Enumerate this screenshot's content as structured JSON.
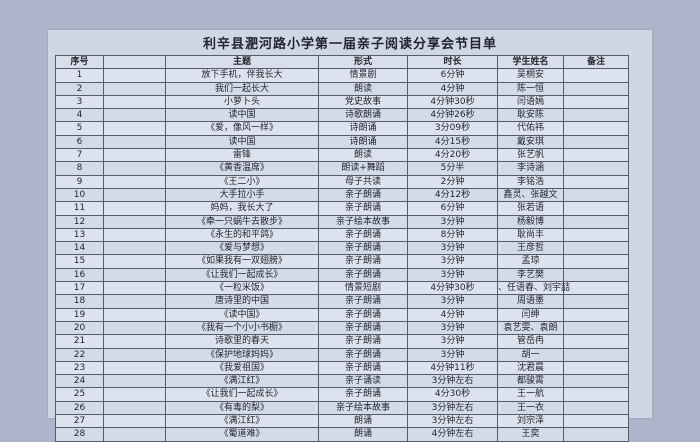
{
  "colors": {
    "page_background": "#aeb5ca",
    "panel_background": "#cfd7e5",
    "grid_line": "#565c69",
    "text": "#23262f"
  },
  "title": "利辛县淝河路小学第一届亲子阅读分享会节目单",
  "table": {
    "headers": [
      "序号",
      "",
      "主题",
      "形式",
      "时长",
      "学生姓名",
      "备注"
    ],
    "rows": [
      [
        "1",
        "",
        "放下手机，伴我长大",
        "情景剧",
        "6分钟",
        "吴桐安",
        ""
      ],
      [
        "2",
        "",
        "我们一起长大",
        "朗读",
        "4分钟",
        "陈一恒",
        ""
      ],
      [
        "3",
        "",
        "小萝卜头",
        "党史故事",
        "4分钟30秒",
        "闫语嫣",
        ""
      ],
      [
        "4",
        "",
        "读中国",
        "诗歌朗诵",
        "4分钟26秒",
        "耿安陈",
        ""
      ],
      [
        "5",
        "",
        "《爱，像风一样》",
        "诗朗诵",
        "3分09秒",
        "代佑祎",
        ""
      ],
      [
        "6",
        "",
        "读中国",
        "诗朗诵",
        "4分15秒",
        "戴安琪",
        ""
      ],
      [
        "7",
        "",
        "雷锋",
        "朗读",
        "4分20秒",
        "张艺帆",
        ""
      ],
      [
        "8",
        "",
        "《黄香温席》",
        "朗读+舞蹈",
        "5分半",
        "李诗涵",
        ""
      ],
      [
        "9",
        "",
        "《王二小》",
        "母子共读",
        "2分钟",
        "李铭浩",
        ""
      ],
      [
        "10",
        "",
        "大手拉小手",
        "亲子朗诵",
        "4分12秒",
        "鑫灵、张越文",
        ""
      ],
      [
        "11",
        "",
        "妈妈，我长大了",
        "亲子朗诵",
        "6分钟",
        "张若语",
        ""
      ],
      [
        "12",
        "",
        "《牵一只蜗牛去散步》",
        "亲子绘本故事",
        "3分钟",
        "杨毅博",
        ""
      ],
      [
        "13",
        "",
        "《永生的和平鸽》",
        "亲子朗诵",
        "8分钟",
        "耿尚丰",
        ""
      ],
      [
        "14",
        "",
        "《爱与梦想》",
        "亲子朗诵",
        "3分钟",
        "王彦哲",
        ""
      ],
      [
        "15",
        "",
        "《如果我有一双翅膀》",
        "亲子朗诵",
        "3分钟",
        "孟琼",
        ""
      ],
      [
        "16",
        "",
        "《让我们一起成长》",
        "亲子朗诵",
        "3分钟",
        "李艺樊",
        ""
      ],
      [
        "17",
        "",
        "《一粒米饭》",
        "情景短剧",
        "4分钟30秒",
        "、任语春、刘宇喆",
        ""
      ],
      [
        "18",
        "",
        "唐诗里的中国",
        "亲子朗诵",
        "3分钟",
        "周语墨",
        ""
      ],
      [
        "19",
        "",
        "《读中国》",
        "亲子朗诵",
        "4分钟",
        "闫绅",
        ""
      ],
      [
        "20",
        "",
        "《我有一个小小书橱》",
        "亲子朗诵",
        "3分钟",
        "袁艺雯、袁朗",
        ""
      ],
      [
        "21",
        "",
        "诗歌里的春天",
        "亲子朗诵",
        "3分钟",
        "管岳冉",
        ""
      ],
      [
        "22",
        "",
        "《保护地球妈妈》",
        "亲子朗诵",
        "3分钟",
        "胡一",
        ""
      ],
      [
        "23",
        "",
        "《我爱祖国》",
        "亲子朗诵",
        "4分钟11秒",
        "沈君晨",
        ""
      ],
      [
        "24",
        "",
        "《满江红》",
        "亲子诵读",
        "3分钟左右",
        "都骏霄",
        ""
      ],
      [
        "25",
        "",
        "《让我们一起成长》",
        "亲子朗诵",
        "4分30秒",
        "王一航",
        ""
      ],
      [
        "26",
        "",
        "《有毒的梨》",
        "亲子绘本故事",
        "3分钟左右",
        "王一衣",
        ""
      ],
      [
        "27",
        "",
        "《满江红》",
        "朗诵",
        "3分钟左右",
        "刘宗泽",
        ""
      ],
      [
        "28",
        "",
        "《蜀道难》",
        "朗诵",
        "4分钟左右",
        "王奕",
        ""
      ]
    ]
  }
}
